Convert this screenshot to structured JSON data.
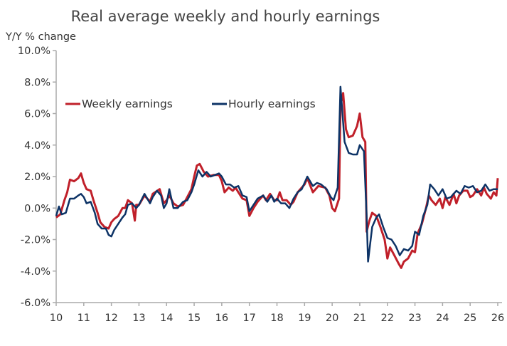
{
  "chart_data": {
    "type": "line",
    "title": "Real average weekly and hourly earnings",
    "ylabel": "Y/Y % change",
    "xlabel": "",
    "ylim": [
      -6,
      10
    ],
    "xlim": [
      10,
      26
    ],
    "yticks": [
      10,
      8,
      6,
      4,
      2,
      0,
      -2,
      -4,
      -6
    ],
    "ytick_labels": [
      "10.0%",
      "8.0%",
      "6.0%",
      "4.0%",
      "2.0%",
      "0.0%",
      "-2.0%",
      "-4.0%",
      "-6.0%"
    ],
    "xticks": [
      10,
      11,
      12,
      13,
      14,
      15,
      16,
      17,
      18,
      19,
      20,
      21,
      22,
      23,
      24,
      25,
      26
    ],
    "xtick_labels": [
      "10",
      "11",
      "12",
      "13",
      "14",
      "15",
      "16",
      "17",
      "18",
      "19",
      "20",
      "21",
      "22",
      "23",
      "24",
      "25",
      "26"
    ],
    "grid": false,
    "legend_position": "top-left",
    "series": [
      {
        "name": "Weekly earnings",
        "color": "#c0202a",
        "x": [
          10.0,
          10.15,
          10.3,
          10.4,
          10.5,
          10.65,
          10.8,
          10.9,
          11.0,
          11.1,
          11.25,
          11.35,
          11.5,
          11.6,
          11.75,
          11.9,
          12.0,
          12.1,
          12.25,
          12.4,
          12.5,
          12.6,
          12.75,
          12.85,
          12.9,
          13.0,
          13.2,
          13.4,
          13.5,
          13.75,
          13.9,
          14.0,
          14.1,
          14.25,
          14.4,
          14.6,
          14.75,
          14.9,
          15.0,
          15.1,
          15.2,
          15.35,
          15.5,
          15.7,
          15.9,
          16.0,
          16.1,
          16.25,
          16.4,
          16.5,
          16.6,
          16.75,
          16.9,
          17.0,
          17.15,
          17.3,
          17.5,
          17.6,
          17.75,
          17.9,
          18.0,
          18.1,
          18.2,
          18.35,
          18.5,
          18.6,
          18.75,
          18.9,
          19.0,
          19.1,
          19.3,
          19.5,
          19.75,
          19.9,
          20.0,
          20.1,
          20.25,
          20.3,
          20.4,
          20.5,
          20.6,
          20.75,
          20.9,
          21.0,
          21.1,
          21.2,
          21.25,
          21.35,
          21.45,
          21.6,
          21.75,
          21.9,
          22.0,
          22.1,
          22.25,
          22.4,
          22.5,
          22.6,
          22.75,
          22.9,
          23.0,
          23.1,
          23.25,
          23.4,
          23.5,
          23.6,
          23.75,
          23.9,
          24.0,
          24.1,
          24.25,
          24.4,
          24.5,
          24.6,
          24.75,
          24.9,
          25.0,
          25.1,
          25.25,
          25.4,
          25.5,
          25.6,
          25.75,
          25.85,
          25.95,
          26.0
        ],
        "values": [
          -0.6,
          -0.4,
          0.5,
          1.0,
          1.8,
          1.7,
          1.9,
          2.2,
          1.6,
          1.2,
          1.1,
          0.5,
          -0.3,
          -0.9,
          -1.2,
          -1.3,
          -0.9,
          -0.7,
          -0.5,
          0.0,
          0.0,
          0.5,
          0.3,
          -0.8,
          0.2,
          0.2,
          0.8,
          0.4,
          0.9,
          1.2,
          0.3,
          0.5,
          0.8,
          0.3,
          0.1,
          0.2,
          0.7,
          1.2,
          2.0,
          2.7,
          2.8,
          2.3,
          2.0,
          2.1,
          2.1,
          1.7,
          1.0,
          1.3,
          1.1,
          1.3,
          1.0,
          0.6,
          0.5,
          -0.5,
          0.0,
          0.4,
          0.8,
          0.5,
          0.9,
          0.5,
          0.5,
          1.0,
          0.5,
          0.5,
          0.2,
          0.4,
          1.0,
          1.3,
          1.5,
          1.9,
          1.0,
          1.4,
          1.3,
          0.8,
          0.0,
          -0.2,
          0.6,
          6.5,
          7.3,
          5.0,
          4.5,
          4.6,
          5.2,
          6.0,
          4.5,
          4.2,
          -1.5,
          -0.8,
          -0.3,
          -0.5,
          -1.2,
          -2.0,
          -3.2,
          -2.5,
          -3.0,
          -3.5,
          -3.8,
          -3.4,
          -3.2,
          -2.7,
          -2.8,
          -1.6,
          -1.0,
          0.0,
          0.8,
          0.5,
          0.2,
          0.6,
          0.0,
          0.7,
          0.2,
          0.9,
          0.3,
          0.8,
          1.1,
          1.1,
          0.7,
          0.8,
          1.2,
          0.8,
          1.3,
          0.9,
          0.6,
          1.0,
          0.8,
          1.9
        ]
      },
      {
        "name": "Hourly earnings",
        "color": "#0d3366",
        "x": [
          10.0,
          10.1,
          10.2,
          10.35,
          10.5,
          10.65,
          10.8,
          10.9,
          11.0,
          11.1,
          11.25,
          11.4,
          11.5,
          11.65,
          11.8,
          11.9,
          12.0,
          12.1,
          12.25,
          12.4,
          12.5,
          12.6,
          12.75,
          12.9,
          13.0,
          13.2,
          13.4,
          13.5,
          13.65,
          13.8,
          13.9,
          14.0,
          14.1,
          14.25,
          14.4,
          14.6,
          14.75,
          14.9,
          15.0,
          15.15,
          15.3,
          15.45,
          15.6,
          15.75,
          15.9,
          16.0,
          16.15,
          16.3,
          16.45,
          16.6,
          16.75,
          16.9,
          17.0,
          17.15,
          17.3,
          17.5,
          17.65,
          17.8,
          17.9,
          18.0,
          18.15,
          18.3,
          18.45,
          18.6,
          18.75,
          18.9,
          19.0,
          19.1,
          19.3,
          19.45,
          19.6,
          19.8,
          19.95,
          20.05,
          20.2,
          20.3,
          20.45,
          20.6,
          20.75,
          20.9,
          21.0,
          21.15,
          21.25,
          21.3,
          21.45,
          21.6,
          21.7,
          21.85,
          22.0,
          22.15,
          22.3,
          22.45,
          22.6,
          22.75,
          22.9,
          23.0,
          23.15,
          23.3,
          23.45,
          23.55,
          23.7,
          23.85,
          24.0,
          24.15,
          24.3,
          24.5,
          24.65,
          24.8,
          24.95,
          25.1,
          25.25,
          25.4,
          25.55,
          25.7,
          25.85,
          26.0
        ],
        "values": [
          -0.5,
          0.1,
          -0.4,
          -0.3,
          0.6,
          0.6,
          0.8,
          0.9,
          0.7,
          0.3,
          0.4,
          -0.3,
          -1.0,
          -1.3,
          -1.3,
          -1.7,
          -1.8,
          -1.4,
          -1.0,
          -0.6,
          -0.4,
          0.2,
          0.3,
          0.0,
          0.2,
          0.9,
          0.3,
          0.7,
          1.1,
          0.8,
          0.0,
          0.3,
          1.2,
          0.0,
          0.0,
          0.4,
          0.5,
          1.0,
          1.5,
          2.4,
          2.0,
          2.3,
          2.0,
          2.1,
          2.2,
          2.0,
          1.5,
          1.5,
          1.3,
          1.4,
          0.8,
          0.7,
          -0.2,
          0.2,
          0.6,
          0.8,
          0.4,
          0.8,
          0.4,
          0.6,
          0.3,
          0.3,
          0.0,
          0.6,
          1.0,
          1.2,
          1.6,
          2.0,
          1.4,
          1.6,
          1.5,
          1.2,
          0.7,
          0.5,
          1.3,
          7.7,
          4.2,
          3.5,
          3.4,
          3.4,
          4.0,
          3.6,
          -0.5,
          -3.4,
          -1.2,
          -0.6,
          -0.4,
          -1.2,
          -1.9,
          -2.0,
          -2.4,
          -3.0,
          -2.6,
          -2.7,
          -2.4,
          -1.5,
          -1.7,
          -0.5,
          0.2,
          1.5,
          1.2,
          0.8,
          1.2,
          0.6,
          0.7,
          1.1,
          0.9,
          1.4,
          1.3,
          1.4,
          1.0,
          1.1,
          1.5,
          1.1,
          1.2,
          1.2
        ]
      }
    ]
  }
}
